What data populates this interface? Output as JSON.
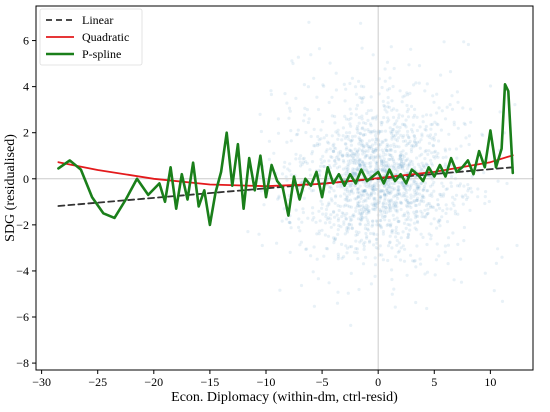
{
  "chart_data": {
    "type": "line",
    "title": "",
    "xlabel": "Econ. Diplomacy (within-dm, ctrl-resid)",
    "ylabel": "SDG (residualised)",
    "xlim": [
      -30.5,
      13.8
    ],
    "ylim": [
      -8.3,
      7.5
    ],
    "xticks": [
      -30,
      -25,
      -20,
      -15,
      -10,
      -5,
      0,
      5,
      10
    ],
    "yticks": [
      -8,
      -6,
      -4,
      -2,
      0,
      2,
      4,
      6
    ],
    "reference_lines": {
      "x": 0,
      "y": 0
    },
    "grid": false,
    "legend_position": "top-left",
    "scatter": {
      "name": "observations",
      "color": "#4a8fc0",
      "description": "dense cloud of semi-transparent points centred near (0, 0), spread roughly x in [-12, 12], y in [-7, 7]"
    },
    "series": [
      {
        "name": "Linear",
        "style": "dashed",
        "color": "#333333",
        "x": [
          -28.5,
          12
        ],
        "y": [
          -1.18,
          0.5
        ]
      },
      {
        "name": "Quadratic",
        "style": "solid",
        "color": "#e31a1c",
        "x": [
          -28.5,
          -25,
          -20,
          -15,
          -10,
          -5,
          0,
          5,
          10,
          12
        ],
        "y": [
          0.72,
          0.38,
          0.0,
          -0.25,
          -0.32,
          -0.22,
          0.03,
          0.3,
          0.72,
          1.02
        ]
      },
      {
        "name": "P-spline",
        "style": "solid",
        "color": "#1a7f1a",
        "x": [
          -28.5,
          -27.5,
          -26.5,
          -25.5,
          -24.5,
          -23.5,
          -22.5,
          -21.5,
          -20.5,
          -19.5,
          -19.0,
          -18.5,
          -18.0,
          -17.5,
          -17.0,
          -16.5,
          -16.0,
          -15.5,
          -15.0,
          -14.5,
          -14.0,
          -13.5,
          -13.0,
          -12.5,
          -12.0,
          -11.5,
          -11.0,
          -10.5,
          -10.0,
          -9.5,
          -9.0,
          -8.5,
          -8.0,
          -7.5,
          -7.0,
          -6.5,
          -6.0,
          -5.5,
          -5.0,
          -4.5,
          -4.0,
          -3.5,
          -3.0,
          -2.5,
          -2.0,
          -1.5,
          -1.0,
          -0.5,
          0.0,
          0.5,
          1.0,
          1.5,
          2.0,
          2.5,
          3.0,
          3.5,
          4.0,
          4.5,
          5.0,
          5.5,
          6.0,
          6.5,
          7.0,
          7.5,
          8.0,
          8.5,
          9.0,
          9.5,
          10.0,
          10.5,
          11.0,
          11.3,
          11.6,
          12.0
        ],
        "y": [
          0.45,
          0.8,
          0.4,
          -0.8,
          -1.5,
          -1.7,
          -0.9,
          0.0,
          -0.7,
          -0.2,
          -1.0,
          0.5,
          -1.3,
          0.2,
          -0.9,
          0.7,
          -1.2,
          -0.5,
          -2.0,
          -0.6,
          0.3,
          2.0,
          -0.3,
          1.5,
          -1.3,
          0.9,
          -0.5,
          1.0,
          -0.8,
          0.6,
          -0.1,
          -0.4,
          -1.6,
          0.1,
          -0.9,
          0.0,
          -0.3,
          0.3,
          -0.8,
          0.5,
          -0.2,
          0.2,
          -0.3,
          0.2,
          -0.2,
          0.4,
          -0.1,
          0.1,
          0.3,
          -0.2,
          0.4,
          -0.1,
          0.2,
          -0.2,
          0.4,
          0.2,
          -0.1,
          0.5,
          0.1,
          0.6,
          0.1,
          0.9,
          0.3,
          0.5,
          0.8,
          0.2,
          1.2,
          0.5,
          2.1,
          0.5,
          1.3,
          4.1,
          3.8,
          0.25
        ]
      }
    ]
  }
}
